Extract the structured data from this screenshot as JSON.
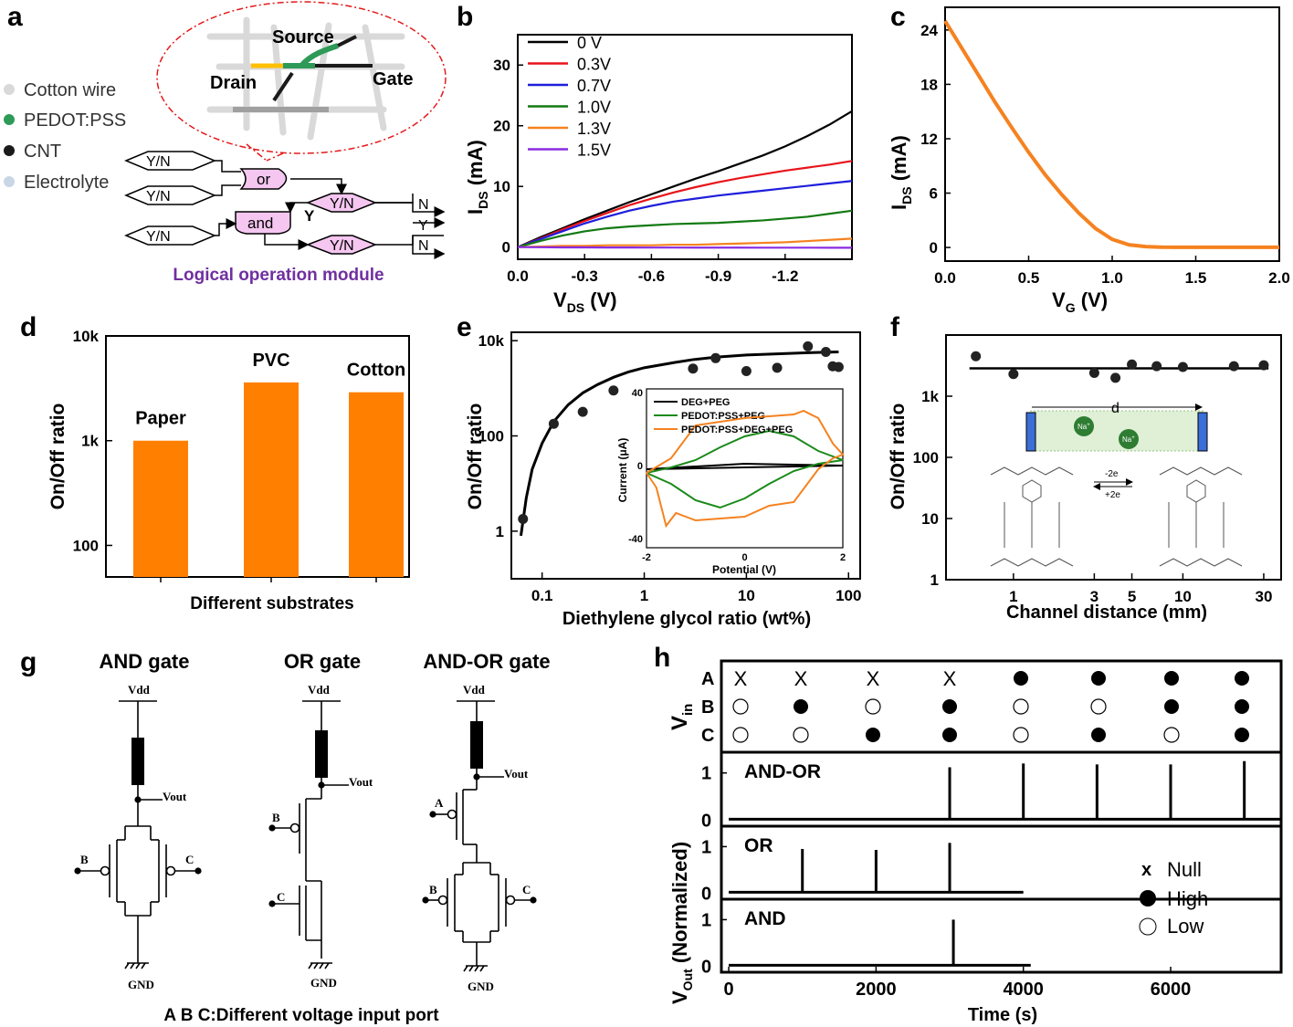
{
  "panels": {
    "a": {
      "letter": "a",
      "legend": [
        "Cotton wire",
        "PEDOT:PSS",
        "CNT",
        "Electrolyte"
      ],
      "legend_colors": [
        "#d9d9d9",
        "#2e9a57",
        "#1a1a1a",
        "#c9d6e6"
      ],
      "zoom_labels": {
        "source": "Source",
        "drain": "Drain",
        "gate": "Gate"
      },
      "gates": {
        "input": "Y/N",
        "or": "or",
        "and": "and",
        "y": "Y",
        "n": "N"
      },
      "caption": "Logical operation module",
      "caption_color": "#7030a0",
      "gate_fill": "#f4c6f0"
    },
    "b": {
      "letter": "b",
      "xlabel_main": "V",
      "xlabel_sub": "DS",
      "xlabel_unit": " (V)",
      "ylabel_main": "I",
      "ylabel_sub": "DS",
      "ylabel_unit": " (mA)"
    },
    "c": {
      "letter": "c",
      "xlabel_main": "V",
      "xlabel_sub": "G",
      "xlabel_unit": " (V)",
      "ylabel_main": "I",
      "ylabel_sub": "DS",
      "ylabel_unit": " (mA)"
    },
    "d": {
      "letter": "d"
    },
    "e": {
      "letter": "e"
    },
    "f": {
      "letter": "f",
      "schematic": {
        "d": "d",
        "ion": "Na",
        "ion_sup": "+",
        "ox": "-2e",
        "red": "+2e"
      }
    },
    "g": {
      "letter": "g",
      "titles": [
        "AND gate",
        "OR gate",
        "AND-OR gate"
      ],
      "vdd": "Vdd",
      "vout": "Vout",
      "gnd": "GND",
      "inputs": {
        "a": "A",
        "b": "B",
        "c": "C"
      },
      "caption": "A B C:Different voltage input port"
    },
    "h": {
      "letter": "h",
      "vin_main": "V",
      "vin_sub": "in",
      "rows": [
        "A",
        "B",
        "C"
      ],
      "states": {
        "A": [
          "x",
          "x",
          "x",
          "x",
          "high",
          "high",
          "high",
          "high"
        ],
        "B": [
          "low",
          "high",
          "low",
          "high",
          "low",
          "low",
          "high",
          "high"
        ],
        "C": [
          "low",
          "low",
          "high",
          "high",
          "low",
          "high",
          "low",
          "high"
        ]
      },
      "null_mark": "X",
      "vout_main": "V",
      "vout_sub": "Out",
      "vout_rest": " (Normalized)",
      "legend": {
        "null_symbol": "x",
        "null": "Null",
        "high": "High",
        "low": "Low"
      },
      "tick_1": "1",
      "tick_0": "0"
    }
  },
  "chart_data": [
    {
      "panel": "b",
      "type": "line",
      "xlabel": "VDS (V)",
      "ylabel": "IDS (mA)",
      "xlim": [
        0,
        -1.5
      ],
      "ylim": [
        -2,
        35
      ],
      "xticks": [
        "0.0",
        "-0.3",
        "-0.6",
        "-0.9",
        "-1.2"
      ],
      "xtick_values": [
        0,
        -0.3,
        -0.6,
        -0.9,
        -1.2
      ],
      "yticks": [
        "0",
        "10",
        "20",
        "30"
      ],
      "ytick_values": [
        0,
        10,
        20,
        30
      ],
      "x": [
        0,
        -0.1,
        -0.2,
        -0.3,
        -0.4,
        -0.5,
        -0.6,
        -0.7,
        -0.8,
        -0.9,
        -1.0,
        -1.1,
        -1.2,
        -1.3,
        -1.4,
        -1.5
      ],
      "series": [
        {
          "name": "0  V",
          "color": "#000000",
          "values": [
            0,
            1.6,
            3.1,
            4.6,
            6.0,
            7.4,
            8.7,
            10.0,
            11.3,
            12.5,
            13.8,
            15.1,
            16.6,
            18.3,
            20.2,
            22.4
          ]
        },
        {
          "name": "0.3V",
          "color": "#e8141b",
          "values": [
            0,
            1.4,
            2.9,
            4.3,
            5.6,
            6.9,
            8.0,
            9.0,
            9.9,
            10.7,
            11.4,
            12.0,
            12.6,
            13.1,
            13.6,
            14.2
          ]
        },
        {
          "name": "0.7V",
          "color": "#1e1edc",
          "values": [
            0,
            1.3,
            2.6,
            3.9,
            5.0,
            6.0,
            6.8,
            7.5,
            8.0,
            8.5,
            8.9,
            9.3,
            9.7,
            10.1,
            10.5,
            10.9
          ]
        },
        {
          "name": "1.0V",
          "color": "#137a13",
          "values": [
            0,
            1.0,
            1.9,
            2.6,
            3.1,
            3.4,
            3.6,
            3.8,
            3.9,
            4.0,
            4.2,
            4.4,
            4.7,
            5.0,
            5.5,
            6.0
          ]
        },
        {
          "name": "1.3V",
          "color": "#f58220",
          "values": [
            0,
            0.1,
            0.2,
            0.2,
            0.3,
            0.3,
            0.3,
            0.4,
            0.4,
            0.5,
            0.6,
            0.7,
            0.8,
            1.0,
            1.2,
            1.4
          ]
        },
        {
          "name": "1.5V",
          "color": "#8a2be2",
          "values": [
            0,
            -0.02,
            -0.04,
            -0.05,
            -0.06,
            -0.06,
            -0.07,
            -0.07,
            -0.08,
            -0.08,
            -0.08,
            -0.09,
            -0.09,
            -0.09,
            -0.1,
            -0.1
          ]
        }
      ]
    },
    {
      "panel": "c",
      "type": "line",
      "xlabel": "VG (V)",
      "ylabel": "IDS (mA)",
      "xlim": [
        0,
        2.0
      ],
      "ylim": [
        -1.5,
        26.5
      ],
      "xticks": [
        "0.0",
        "0.5",
        "1.0",
        "1.5",
        "2.0"
      ],
      "xtick_values": [
        0,
        0.5,
        1.0,
        1.5,
        2.0
      ],
      "yticks": [
        "0",
        "6",
        "12",
        "18",
        "24"
      ],
      "ytick_values": [
        0,
        6,
        12,
        18,
        24
      ],
      "x": [
        0,
        0.1,
        0.2,
        0.3,
        0.4,
        0.5,
        0.6,
        0.7,
        0.8,
        0.9,
        1.0,
        1.1,
        1.2,
        1.3,
        1.4,
        1.5,
        1.7,
        2.0
      ],
      "series": [
        {
          "name": "IDS",
          "color": "#f58220",
          "values": [
            25.0,
            22.0,
            19.0,
            16.0,
            13.2,
            10.5,
            8.0,
            5.8,
            3.8,
            2.1,
            0.9,
            0.3,
            0.1,
            0.03,
            0.02,
            0.02,
            0.02,
            0.02
          ]
        }
      ]
    },
    {
      "panel": "d",
      "type": "bar",
      "title": "",
      "xlabel": "Different substrates",
      "ylabel": "On/Off ratio",
      "yscale": "log",
      "ylim": [
        50,
        10000
      ],
      "yticks": [
        "100",
        "1k",
        "10k"
      ],
      "ytick_values": [
        100,
        1000,
        10000
      ],
      "categories": [
        "Paper",
        "PVC",
        "Cotton"
      ],
      "values": [
        1000,
        3600,
        2900
      ],
      "color": "#ff8000"
    },
    {
      "panel": "e",
      "type": "scatter",
      "xlabel": "Diethylene glycol ratio (wt%)",
      "ylabel": "On/Off ratio",
      "xscale": "log",
      "yscale": "log",
      "xlim": [
        0.05,
        130
      ],
      "ylim": [
        0.1,
        15000
      ],
      "xticks": [
        "0.1",
        "1",
        "10",
        "100"
      ],
      "xtick_values": [
        0.1,
        1,
        10,
        100
      ],
      "yticks": [
        "1",
        "100",
        "10k"
      ],
      "ytick_values": [
        1,
        100,
        10000
      ],
      "x": [
        0.065,
        0.13,
        0.25,
        0.5,
        3,
        5,
        10,
        20,
        40,
        60,
        70,
        80
      ],
      "y": [
        1.8,
        180,
        320,
        900,
        2600,
        4300,
        2300,
        2700,
        7600,
        5800,
        2900,
        2800
      ],
      "fit": {
        "x": [
          0.062,
          0.07,
          0.08,
          0.1,
          0.13,
          0.18,
          0.25,
          0.35,
          0.5,
          0.7,
          1,
          2,
          3,
          5,
          10,
          20,
          40,
          80
        ],
        "y": [
          0.8,
          5,
          20,
          70,
          200,
          450,
          800,
          1200,
          1700,
          2200,
          2700,
          3500,
          4000,
          4500,
          5000,
          5300,
          5600,
          5800
        ]
      },
      "inset": {
        "type": "line",
        "xlabel": "Potential (V)",
        "ylabel": "Current (μA)",
        "xlim": [
          -2,
          2
        ],
        "ylim": [
          -45,
          42
        ],
        "xticks": [
          "-2",
          "0",
          "2"
        ],
        "xtick_values": [
          -2,
          0,
          2
        ],
        "yticks": [
          "-40",
          "0",
          "40"
        ],
        "ytick_values": [
          -40,
          0,
          40
        ],
        "series": [
          {
            "name": "DEG+PEG",
            "color": "#000000",
            "x": [
              -2,
              0,
              2,
              0,
              -2
            ],
            "y": [
              -2,
              -1,
              0,
              1,
              -2
            ]
          },
          {
            "name": "PEDOT:PSS+PEG",
            "color": "#1a8a1a",
            "x": [
              -2,
              -1.5,
              -1,
              -0.5,
              0,
              0.5,
              1,
              1.5,
              2,
              1.5,
              1,
              0.5,
              0,
              -0.5,
              -1,
              -1.5,
              -2
            ],
            "y": [
              -4,
              -10,
              -19,
              -23,
              -18,
              -10,
              -3,
              1,
              3,
              8,
              16,
              19,
              16,
              10,
              3,
              -1,
              -4
            ]
          },
          {
            "name": "PEDOT:PSS+DEG+PEG",
            "color": "#f58220",
            "x": [
              -2,
              -1.8,
              -1.6,
              -1.4,
              -1.2,
              -1,
              0,
              0.5,
              1,
              1.5,
              1.8,
              2,
              1.8,
              1.5,
              1.2,
              1,
              0,
              -1,
              -1.5,
              -2
            ],
            "y": [
              -4,
              -12,
              -33,
              -26,
              -28,
              -30,
              -28,
              -22,
              -20,
              -2,
              4,
              6,
              12,
              26,
              30,
              28,
              26,
              22,
              4,
              -4
            ]
          }
        ]
      }
    },
    {
      "panel": "f",
      "type": "scatter",
      "xlabel": "Channel distance (mm)",
      "ylabel": "On/Off ratio",
      "xscale": "log",
      "yscale": "log",
      "xlim": [
        0.4,
        38
      ],
      "ylim": [
        1,
        10000
      ],
      "xticks": [
        "1",
        "3",
        "5",
        "10",
        "30"
      ],
      "xtick_values": [
        1,
        3,
        5,
        10,
        30
      ],
      "yticks": [
        "1",
        "10",
        "100",
        "1k"
      ],
      "ytick_values": [
        1,
        10,
        100,
        1000
      ],
      "x": [
        0.6,
        1,
        3,
        4,
        5,
        7,
        10,
        20,
        30
      ],
      "y": [
        4500,
        2300,
        2400,
        2000,
        3300,
        3100,
        3000,
        3100,
        3200
      ],
      "fit_y": 2850
    },
    {
      "panel": "h",
      "type": "line",
      "xlabel": "Time (s)",
      "ylabel": "VOut (Normalized)",
      "xlim": [
        -100,
        7500
      ],
      "xticks": [
        "0",
        "2000",
        "4000",
        "6000"
      ],
      "xtick_values": [
        0,
        2000,
        4000,
        6000
      ],
      "subplots": [
        {
          "name": "AND-OR",
          "baseline_end": 7500,
          "spikes": [
            {
              "t": 3000,
              "h": 1.12
            },
            {
              "t": 4000,
              "h": 1.2
            },
            {
              "t": 5000,
              "h": 1.18
            },
            {
              "t": 6000,
              "h": 1.18
            },
            {
              "t": 7000,
              "h": 1.25
            }
          ]
        },
        {
          "name": "OR",
          "baseline_end": 4000,
          "spikes": [
            {
              "t": 1000,
              "h": 0.95
            },
            {
              "t": 2000,
              "h": 0.93
            },
            {
              "t": 3000,
              "h": 1.08
            }
          ]
        },
        {
          "name": "AND",
          "baseline_end": 4100,
          "spikes": [
            {
              "t": 3050,
              "h": 1.0
            }
          ]
        }
      ]
    }
  ]
}
